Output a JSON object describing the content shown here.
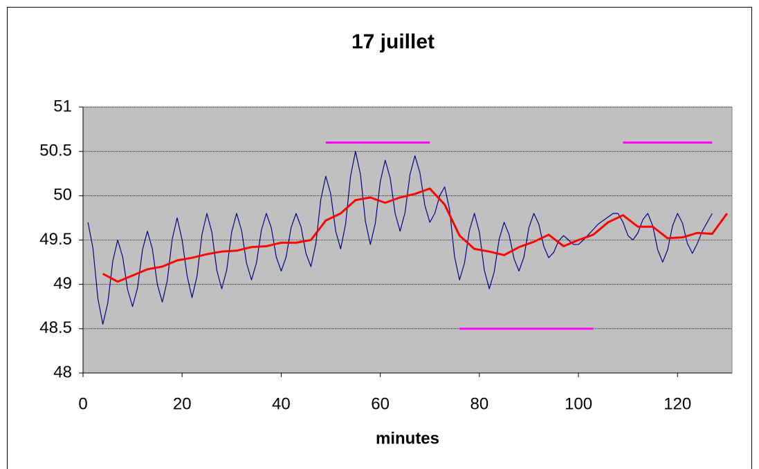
{
  "chart_data": {
    "type": "line",
    "title": "17 juillet",
    "x_label": "minutes",
    "xlim": [
      0,
      131
    ],
    "xticks": [
      0,
      20,
      40,
      60,
      80,
      100,
      120
    ],
    "ylim": [
      48,
      51
    ],
    "yticks": [
      48,
      48.5,
      49,
      49.5,
      50,
      50.5,
      51
    ],
    "grid": true,
    "series": [
      {
        "color": "#000080",
        "x": [
          1,
          2,
          3,
          4,
          5,
          6,
          7,
          8,
          9,
          10,
          11,
          12,
          13,
          14,
          15,
          16,
          17,
          18,
          19,
          20,
          21,
          22,
          23,
          24,
          25,
          26,
          27,
          28,
          29,
          30,
          31,
          32,
          33,
          34,
          35,
          36,
          37,
          38,
          39,
          40,
          41,
          42,
          43,
          44,
          45,
          46,
          47,
          48,
          49,
          50,
          51,
          52,
          53,
          54,
          55,
          56,
          57,
          58,
          59,
          60,
          61,
          62,
          63,
          64,
          65,
          66,
          67,
          68,
          69,
          70,
          71,
          72,
          73,
          74,
          75,
          76,
          77,
          78,
          79,
          80,
          81,
          82,
          83,
          84,
          85,
          86,
          87,
          88,
          89,
          90,
          91,
          92,
          93,
          94,
          95,
          96,
          97,
          98,
          99,
          100,
          101,
          102,
          103,
          104,
          105,
          106,
          107,
          108,
          109,
          110,
          111,
          112,
          113,
          114,
          115,
          116,
          117,
          118,
          119,
          120,
          121,
          122,
          123,
          124,
          125,
          126,
          127
        ],
        "values": [
          49.7,
          49.41,
          48.84,
          48.55,
          48.79,
          49.26,
          49.5,
          49.31,
          48.94,
          48.75,
          48.96,
          49.39,
          49.6,
          49.4,
          49.0,
          48.8,
          49.04,
          49.51,
          49.75,
          49.5,
          49.1,
          48.85,
          49.09,
          49.56,
          49.8,
          49.59,
          49.16,
          48.95,
          49.16,
          49.59,
          49.8,
          49.61,
          49.24,
          49.05,
          49.24,
          49.61,
          49.8,
          49.64,
          49.31,
          49.15,
          49.31,
          49.64,
          49.8,
          49.65,
          49.35,
          49.2,
          49.46,
          49.96,
          50.22,
          50.02,
          49.6,
          49.4,
          49.68,
          50.22,
          50.5,
          50.24,
          49.71,
          49.45,
          49.69,
          50.16,
          50.4,
          50.2,
          49.8,
          49.6,
          49.81,
          50.24,
          50.45,
          50.26,
          49.89,
          49.7,
          49.8,
          50.0,
          50.1,
          49.84,
          49.31,
          49.05,
          49.24,
          49.61,
          49.8,
          49.59,
          49.16,
          48.95,
          49.14,
          49.51,
          49.7,
          49.56,
          49.29,
          49.15,
          49.31,
          49.64,
          49.8,
          49.68,
          49.43,
          49.3,
          49.36,
          49.49,
          49.55,
          49.5,
          49.45,
          49.45,
          49.5,
          49.56,
          49.62,
          49.68,
          49.72,
          49.76,
          49.8,
          49.8,
          49.7,
          49.55,
          49.5,
          49.58,
          49.73,
          49.8,
          49.66,
          49.39,
          49.25,
          49.39,
          49.66,
          49.8,
          49.69,
          49.46,
          49.35,
          49.46,
          49.6,
          49.7,
          49.8
        ]
      },
      {
        "color": "#ff0000",
        "x": [
          4,
          7,
          10,
          13,
          16,
          19,
          22,
          25,
          28,
          31,
          34,
          37,
          40,
          43,
          46,
          49,
          52,
          55,
          58,
          61,
          64,
          67,
          70,
          73,
          76,
          79,
          82,
          85,
          88,
          91,
          94,
          97,
          100,
          103,
          106,
          109,
          112,
          115,
          118,
          121,
          124,
          127,
          130
        ],
        "values": [
          49.12,
          49.03,
          49.1,
          49.17,
          49.2,
          49.27,
          49.3,
          49.34,
          49.37,
          49.38,
          49.42,
          49.43,
          49.47,
          49.47,
          49.5,
          49.72,
          49.8,
          49.95,
          49.98,
          49.92,
          49.98,
          50.02,
          50.08,
          49.9,
          49.55,
          49.4,
          49.37,
          49.33,
          49.42,
          49.48,
          49.56,
          49.43,
          49.5,
          49.56,
          49.7,
          49.78,
          49.65,
          49.65,
          49.52,
          49.53,
          49.58,
          49.57,
          49.8
        ]
      },
      {
        "color": "#ff00ff",
        "x": [
          49,
          70
        ],
        "values": [
          50.6,
          50.6
        ]
      },
      {
        "color": "#ff00ff",
        "x": [
          76,
          103
        ],
        "values": [
          48.5,
          48.5
        ]
      },
      {
        "color": "#ff00ff",
        "x": [
          109,
          127
        ],
        "values": [
          50.6,
          50.6
        ]
      }
    ]
  }
}
